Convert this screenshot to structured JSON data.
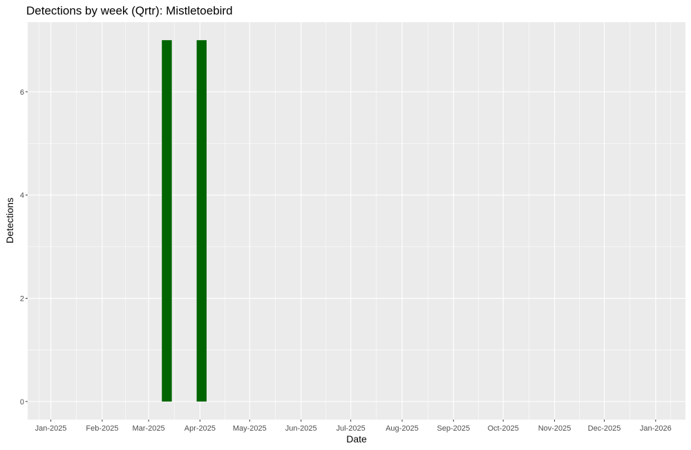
{
  "chart_data": {
    "type": "bar",
    "title": "Detections by week (Qrtr): Mistletoebird",
    "xlabel": "Date",
    "ylabel": "Detections",
    "x_axis": {
      "type": "date",
      "range": [
        "2024-12-18",
        "2026-01-19"
      ],
      "ticks": [
        {
          "date": "2025-01-01",
          "label": "Jan-2025"
        },
        {
          "date": "2025-02-01",
          "label": "Feb-2025"
        },
        {
          "date": "2025-03-01",
          "label": "Mar-2025"
        },
        {
          "date": "2025-04-01",
          "label": "Apr-2025"
        },
        {
          "date": "2025-05-01",
          "label": "May-2025"
        },
        {
          "date": "2025-06-01",
          "label": "Jun-2025"
        },
        {
          "date": "2025-07-01",
          "label": "Jul-2025"
        },
        {
          "date": "2025-08-01",
          "label": "Aug-2025"
        },
        {
          "date": "2025-09-01",
          "label": "Sep-2025"
        },
        {
          "date": "2025-10-01",
          "label": "Oct-2025"
        },
        {
          "date": "2025-11-01",
          "label": "Nov-2025"
        },
        {
          "date": "2025-12-01",
          "label": "Dec-2025"
        },
        {
          "date": "2026-01-01",
          "label": "Jan-2026"
        }
      ]
    },
    "y_axis": {
      "range": [
        -0.35,
        7.35
      ],
      "ticks": [
        0,
        2,
        4,
        6
      ]
    },
    "bar_width_days": 6,
    "bars": [
      {
        "date": "2025-03-12",
        "value": 7
      },
      {
        "date": "2025-04-02",
        "value": 7
      }
    ],
    "colors": {
      "bar": "#006400",
      "panel": "#ebebeb",
      "grid": "#ffffff"
    },
    "grid": true,
    "legend": "none"
  }
}
